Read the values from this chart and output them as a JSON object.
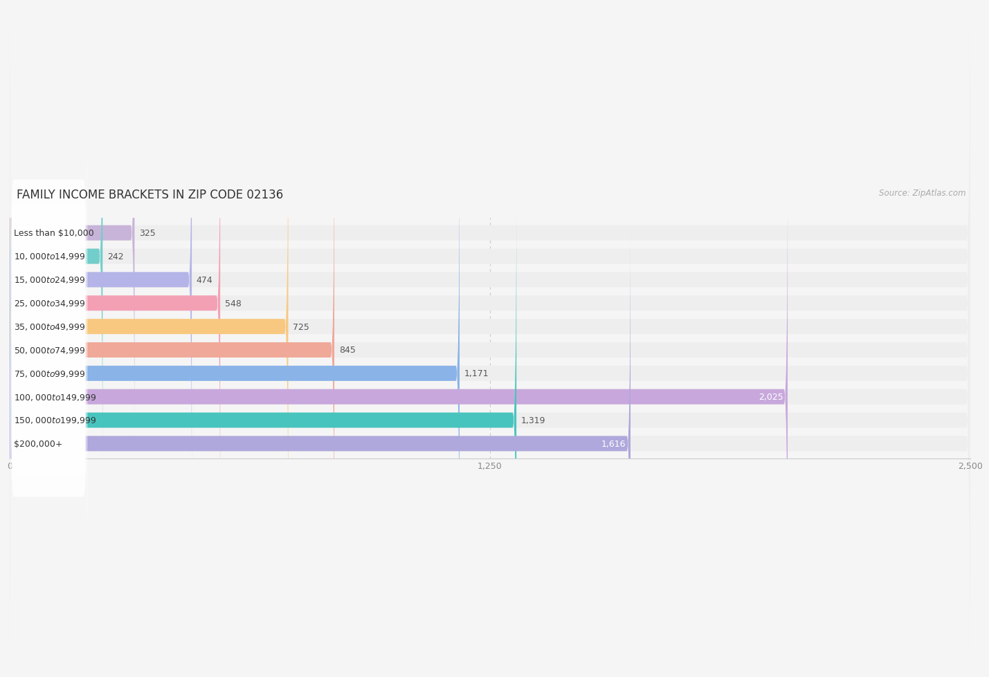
{
  "title": "FAMILY INCOME BRACKETS IN ZIP CODE 02136",
  "source": "Source: ZipAtlas.com",
  "categories": [
    "Less than $10,000",
    "$10,000 to $14,999",
    "$15,000 to $24,999",
    "$25,000 to $34,999",
    "$35,000 to $49,999",
    "$50,000 to $74,999",
    "$75,000 to $99,999",
    "$100,000 to $149,999",
    "$150,000 to $199,999",
    "$200,000+"
  ],
  "values": [
    325,
    242,
    474,
    548,
    725,
    845,
    1171,
    2025,
    1319,
    1616
  ],
  "bar_colors": [
    "#c8b4d8",
    "#72ceca",
    "#b4b4e8",
    "#f4a0b4",
    "#f8c880",
    "#f0a898",
    "#8ab4e8",
    "#c8a8dc",
    "#48c4be",
    "#aea8dc"
  ],
  "label_colors_inside_bar": [
    false,
    false,
    false,
    false,
    false,
    false,
    false,
    true,
    false,
    true
  ],
  "xlim": [
    0,
    2500
  ],
  "xticks": [
    0,
    1250,
    2500
  ],
  "background_color": "#f5f5f5",
  "bar_row_bg": "#eeeeee",
  "title_fontsize": 12,
  "source_fontsize": 8.5,
  "label_fontsize": 9,
  "value_fontsize": 9,
  "bar_height": 0.65
}
